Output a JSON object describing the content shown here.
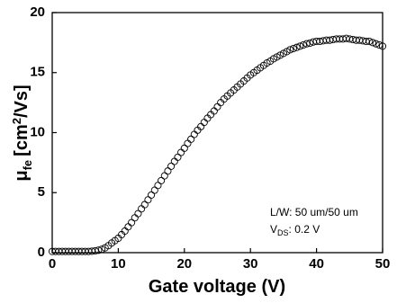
{
  "chart_data": {
    "type": "scatter",
    "x_label": "Gate voltage (V)",
    "y_label": {
      "symbol": "μ",
      "subscript": "fe",
      "unit": "[cm",
      "unit_power": "2",
      "unit_rest": "/Vs]"
    },
    "annotation": {
      "line1": "L/W: 50 um/50 um",
      "line2_symbol": "V",
      "line2_subscript": "DS",
      "line2_rest": ": 0.2 V"
    },
    "xlim": [
      0,
      50
    ],
    "ylim": [
      0,
      20
    ],
    "xticks": [
      0,
      10,
      20,
      30,
      40,
      50
    ],
    "yticks": [
      0,
      5,
      10,
      15,
      20
    ],
    "series": [
      {
        "marker": "open-circle",
        "color": "#000000",
        "x": [
          0,
          0.5,
          1,
          1.5,
          2,
          2.5,
          3,
          3.5,
          4,
          4.5,
          5,
          5.5,
          6,
          6.5,
          7,
          7.5,
          8,
          8.5,
          9,
          9.5,
          10,
          10.5,
          11,
          11.5,
          12,
          12.5,
          13,
          13.5,
          14,
          14.5,
          15,
          15.5,
          16,
          16.5,
          17,
          17.5,
          18,
          18.5,
          19,
          19.5,
          20,
          20.5,
          21,
          21.5,
          22,
          22.5,
          23,
          23.5,
          24,
          24.5,
          25,
          25.5,
          26,
          26.5,
          27,
          27.5,
          28,
          28.5,
          29,
          29.5,
          30,
          30.5,
          31,
          31.5,
          32,
          32.5,
          33,
          33.5,
          34,
          34.5,
          35,
          35.5,
          36,
          36.5,
          37,
          37.5,
          38,
          38.5,
          39,
          39.5,
          40,
          40.5,
          41,
          41.5,
          42,
          42.5,
          43,
          43.5,
          44,
          44.5,
          45,
          45.5,
          46,
          46.5,
          47,
          47.5,
          48,
          48.5,
          49,
          49.5,
          50
        ],
        "values": [
          0.1,
          0.1,
          0.1,
          0.1,
          0.1,
          0.1,
          0.1,
          0.1,
          0.1,
          0.1,
          0.1,
          0.1,
          0.12,
          0.15,
          0.2,
          0.28,
          0.4,
          0.58,
          0.8,
          1.0,
          1.2,
          1.5,
          1.8,
          2.15,
          2.5,
          2.9,
          3.25,
          3.65,
          4.0,
          4.4,
          4.8,
          5.2,
          5.6,
          6.0,
          6.4,
          6.8,
          7.2,
          7.6,
          7.95,
          8.35,
          8.7,
          9.1,
          9.45,
          9.85,
          10.2,
          10.5,
          10.85,
          11.2,
          11.5,
          11.8,
          12.15,
          12.5,
          12.8,
          13.05,
          13.3,
          13.55,
          13.8,
          14.05,
          14.3,
          14.55,
          14.8,
          15.0,
          15.2,
          15.4,
          15.6,
          15.8,
          15.95,
          16.15,
          16.3,
          16.45,
          16.6,
          16.75,
          16.9,
          17.0,
          17.1,
          17.2,
          17.3,
          17.4,
          17.45,
          17.55,
          17.6,
          17.6,
          17.65,
          17.7,
          17.7,
          17.75,
          17.8,
          17.8,
          17.8,
          17.85,
          17.8,
          17.75,
          17.7,
          17.7,
          17.65,
          17.6,
          17.6,
          17.5,
          17.4,
          17.3,
          17.2
        ]
      }
    ]
  }
}
